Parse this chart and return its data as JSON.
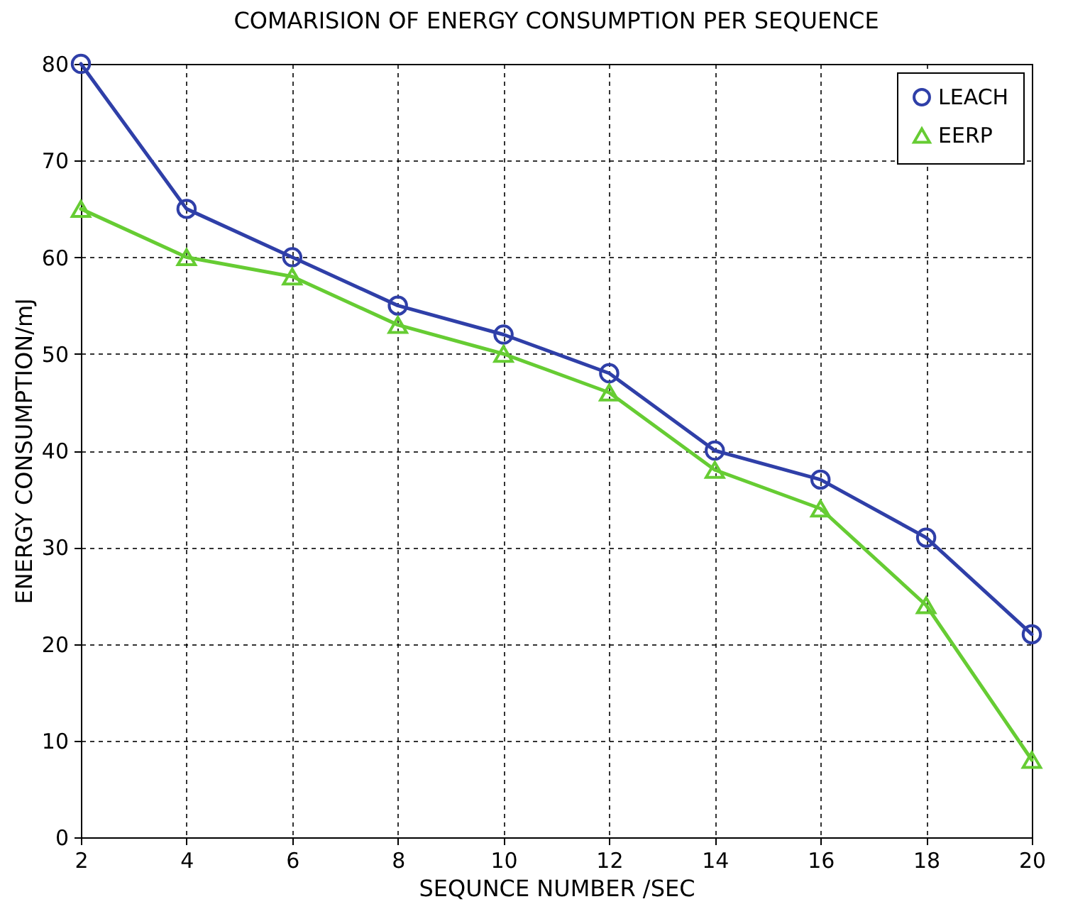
{
  "chart_data": {
    "type": "line",
    "title": "COMARISION OF ENERGY CONSUMPTION PER SEQUENCE",
    "xlabel": "SEQUNCE NUMBER /SEC",
    "ylabel": "ENERGY CONSUMPTION/mJ",
    "x": [
      2,
      4,
      6,
      8,
      10,
      12,
      14,
      16,
      18,
      20
    ],
    "series": [
      {
        "name": "LEACH",
        "color": "#2f3fa8",
        "marker": "circle",
        "values": [
          80,
          65,
          60,
          55,
          52,
          48,
          40,
          37,
          31,
          21
        ]
      },
      {
        "name": "EERP",
        "color": "#66cc33",
        "marker": "triangle",
        "values": [
          65,
          60,
          58,
          53,
          50,
          46,
          38,
          34,
          24,
          8
        ]
      }
    ],
    "xlim": [
      2,
      20
    ],
    "xticks": [
      2,
      4,
      6,
      8,
      10,
      12,
      14,
      16,
      18,
      20
    ],
    "ylim": [
      0,
      80
    ],
    "yticks": [
      0,
      10,
      20,
      30,
      40,
      50,
      60,
      70,
      80
    ],
    "grid": true,
    "legend": "top right",
    "line_style": "solid"
  }
}
